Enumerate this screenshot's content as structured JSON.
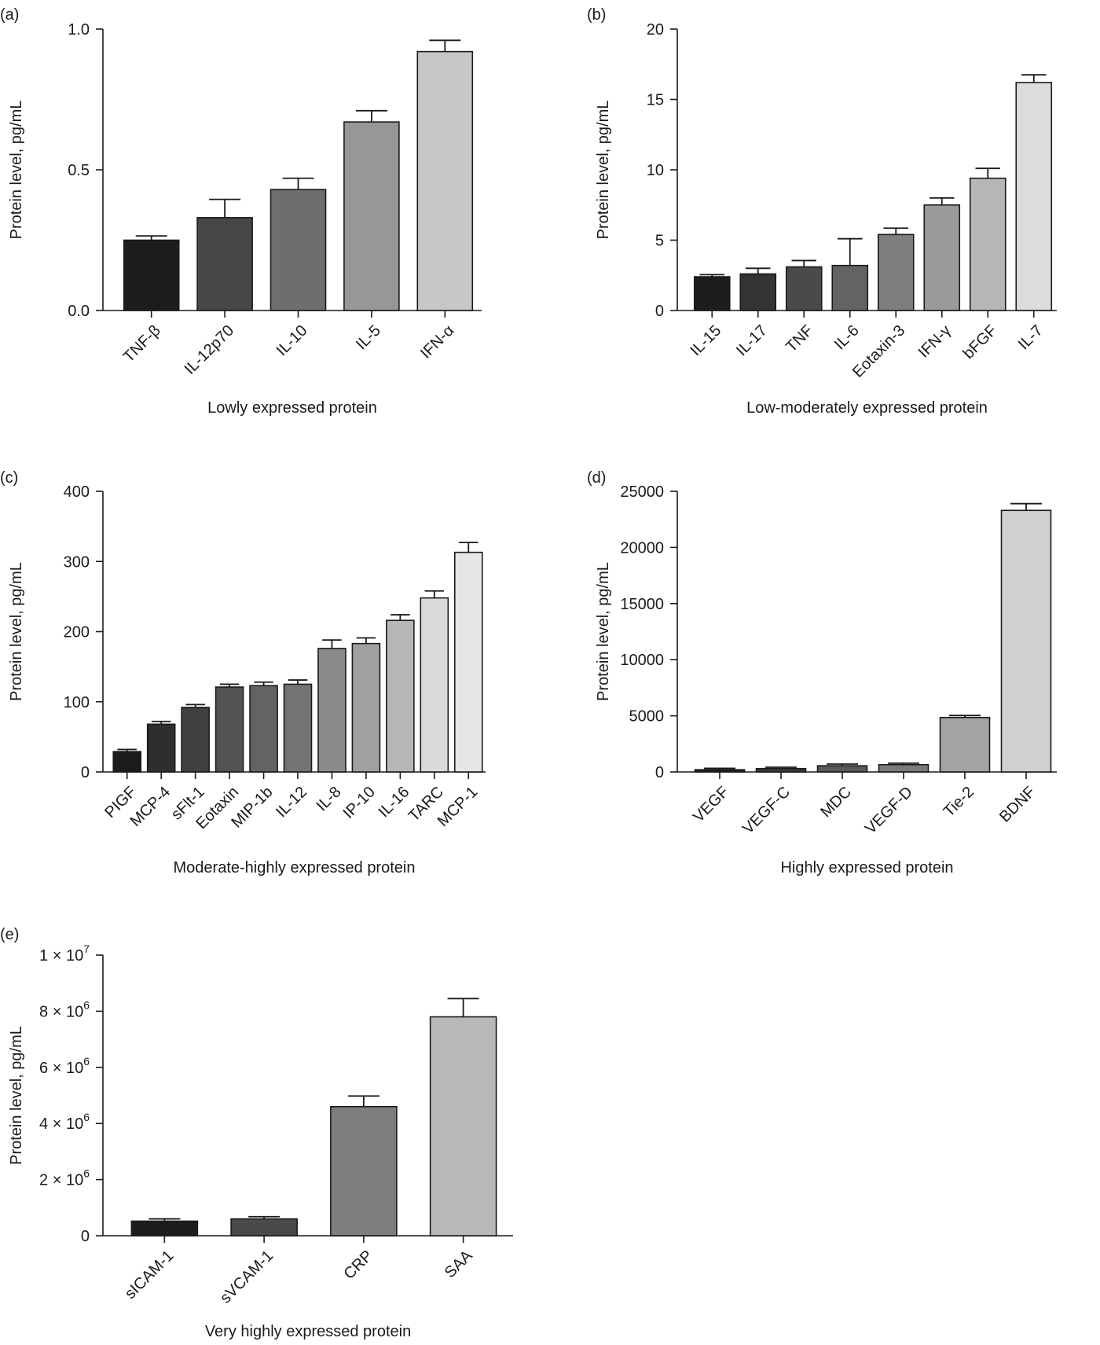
{
  "chart_data": [
    {
      "id": "a",
      "type": "bar",
      "panel_label": "(a)",
      "title": "",
      "xlabel": "Lowly expressed protein",
      "ylabel": "Protein level, pg/mL",
      "ylim": [
        0,
        1.0
      ],
      "ytick_values": [
        0,
        0.5,
        1.0
      ],
      "ytick_labels": [
        "0.0",
        "0.5",
        "1.0"
      ],
      "categories": [
        "TNF-β",
        "IL-12p70",
        "IL-10",
        "IL-5",
        "IFN-α"
      ],
      "values": [
        0.25,
        0.33,
        0.43,
        0.67,
        0.92
      ],
      "errors": [
        0.015,
        0.065,
        0.04,
        0.04,
        0.04
      ],
      "colors": [
        "#1c1c1c",
        "#474747",
        "#6e6e6e",
        "#979797",
        "#c7c7c7"
      ],
      "grid": false
    },
    {
      "id": "b",
      "type": "bar",
      "panel_label": "(b)",
      "title": "",
      "xlabel": "Low-moderately expressed protein",
      "ylabel": "Protein level, pg/mL",
      "ylim": [
        0,
        20
      ],
      "ytick_values": [
        0,
        5,
        10,
        15,
        20
      ],
      "ytick_labels": [
        "0",
        "5",
        "10",
        "15",
        "20"
      ],
      "categories": [
        "IL-15",
        "IL-17",
        "TNF",
        "IL-6",
        "Eotaxin-3",
        "IFN-γ",
        "bFGF",
        "IL-7"
      ],
      "values": [
        2.4,
        2.6,
        3.1,
        3.2,
        5.4,
        7.5,
        9.4,
        16.2
      ],
      "errors": [
        0.15,
        0.4,
        0.45,
        1.9,
        0.45,
        0.5,
        0.7,
        0.55
      ],
      "colors": [
        "#1c1c1c",
        "#333333",
        "#4a4a4a",
        "#636363",
        "#7e7e7e",
        "#9a9a9a",
        "#b6b6b6",
        "#dcdcdc"
      ],
      "grid": false
    },
    {
      "id": "c",
      "type": "bar",
      "panel_label": "(c)",
      "title": "",
      "xlabel": "Moderate-highly expressed protein",
      "ylabel": "Protein level, pg/mL",
      "ylim": [
        0,
        400
      ],
      "ytick_values": [
        0,
        100,
        200,
        300,
        400
      ],
      "ytick_labels": [
        "0",
        "100",
        "200",
        "300",
        "400"
      ],
      "categories": [
        "PIGF",
        "MCP-4",
        "sFlt-1",
        "Eotaxin",
        "MIP-1b",
        "IL-12",
        "IL-8",
        "IP-10",
        "IL-16",
        "TARC",
        "MCP-1"
      ],
      "values": [
        29,
        68,
        92,
        121,
        123,
        125,
        176,
        183,
        216,
        248,
        313
      ],
      "errors": [
        3,
        4,
        4,
        4,
        5,
        6,
        12,
        8,
        8,
        10,
        14
      ],
      "colors": [
        "#1c1c1c",
        "#2e2e2e",
        "#404040",
        "#525252",
        "#636363",
        "#747474",
        "#8a8a8a",
        "#a0a0a0",
        "#b7b7b7",
        "#dadada",
        "#e6e6e6"
      ],
      "grid": false
    },
    {
      "id": "d",
      "type": "bar",
      "panel_label": "(d)",
      "title": "",
      "xlabel": "Highly expressed protein",
      "ylabel": "Protein level, pg/mL",
      "ylim": [
        0,
        25000
      ],
      "ytick_values": [
        0,
        5000,
        10000,
        15000,
        20000,
        25000
      ],
      "ytick_labels": [
        "0",
        "5000",
        "10000",
        "15000",
        "20000",
        "25000"
      ],
      "categories": [
        "VEGF",
        "VEGF-C",
        "MDC",
        "VEGF-D",
        "Tie-2",
        "BDNF"
      ],
      "values": [
        200,
        300,
        550,
        650,
        4850,
        23300
      ],
      "errors": [
        120,
        120,
        150,
        130,
        180,
        600
      ],
      "colors": [
        "#1c1c1c",
        "#3a3a3a",
        "#5a5a5a",
        "#7a7a7a",
        "#a3a3a3",
        "#d0d0d0"
      ],
      "grid": false
    },
    {
      "id": "e",
      "type": "bar",
      "panel_label": "(e)",
      "title": "",
      "xlabel": "Very highly expressed protein",
      "ylabel": "Protein level, pg/mL",
      "ylim": [
        0,
        10000000
      ],
      "ytick_values": [
        0,
        2000000,
        4000000,
        6000000,
        8000000,
        10000000
      ],
      "ytick_labels": [
        {
          "base": "0",
          "exp": ""
        },
        {
          "base": "2 × 10",
          "exp": "6"
        },
        {
          "base": "4 × 10",
          "exp": "6"
        },
        {
          "base": "6 × 10",
          "exp": "6"
        },
        {
          "base": "8 × 10",
          "exp": "6"
        },
        {
          "base": "1 × 10",
          "exp": "7"
        }
      ],
      "categories": [
        "sICAM-1",
        "sVCAM-1",
        "CRP",
        "SAA"
      ],
      "values": [
        520000,
        600000,
        4600000,
        7800000
      ],
      "errors": [
        80000,
        80000,
        380000,
        650000
      ],
      "colors": [
        "#1c1c1c",
        "#4a4a4a",
        "#7e7e7e",
        "#b8b8b8"
      ],
      "grid": false
    }
  ]
}
